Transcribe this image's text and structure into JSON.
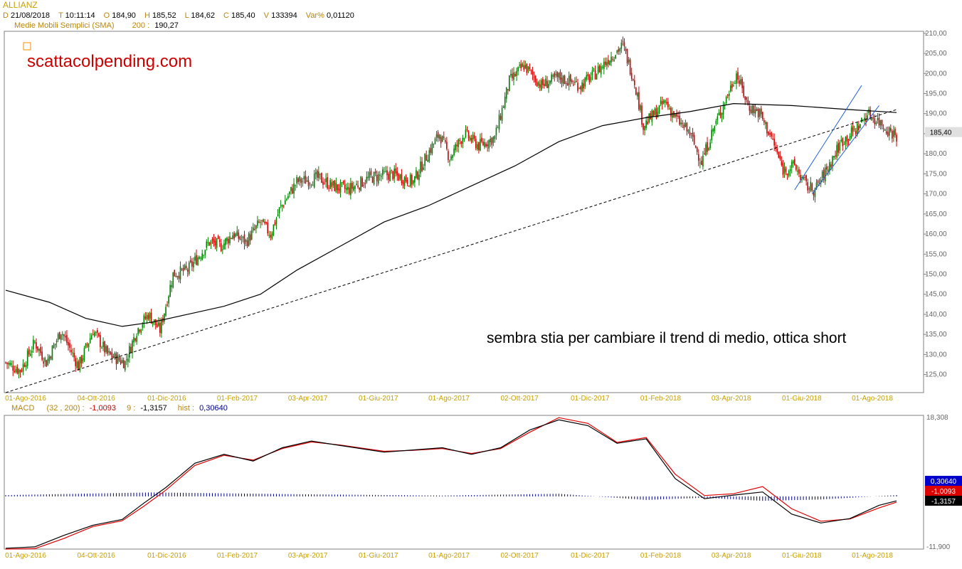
{
  "header": {
    "symbol": "ALLIANZ",
    "ohlc": [
      {
        "k": "D",
        "v": "21/08/2018"
      },
      {
        "k": "T",
        "v": "10:11:14"
      },
      {
        "k": "O",
        "v": "184,90"
      },
      {
        "k": "H",
        "v": "185,52"
      },
      {
        "k": "L",
        "v": "184,62"
      },
      {
        "k": "C",
        "v": "185,40"
      },
      {
        "k": "V",
        "v": "133394"
      },
      {
        "k": "Var%",
        "v": "0,01120"
      }
    ],
    "sma_label": "Medie Mobili Semplici (SMA)",
    "sma_period": "200 :",
    "sma_value": "190,27"
  },
  "watermark": "scattacolpending.com",
  "annotation": "sembra stia per cambiare il trend di medio, ottica short",
  "colors": {
    "axis_label": "#c8a000",
    "up_candle": "#008000",
    "down_candle": "#cc0000",
    "sma": "#000000",
    "channel": "#1f5fd6",
    "macd_line": "#000000",
    "signal_line": "#e00000",
    "histogram": "#00008b",
    "watermark": "#cc0000",
    "marker": "#ff8c00"
  },
  "macd_header": {
    "label": "MACD",
    "params": "(32 , 200) :",
    "macd": "-1,0093",
    "signal_period": "9 :",
    "signal": "-1,3157",
    "hist_label": "hist :",
    "hist": "0,30640"
  },
  "chart_data": [
    {
      "type": "candlestick",
      "x_ticks": [
        "01-Ago-2016",
        "04-Ott-2016",
        "01-Dic-2016",
        "01-Feb-2017",
        "03-Apr-2017",
        "01-Giu-2017",
        "01-Ago-2017",
        "02-Ott-2017",
        "01-Dic-2017",
        "01-Feb-2018",
        "03-Apr-2018",
        "01-Giu-2018",
        "01-Ago-2018"
      ],
      "y_ticks": [
        "210,00",
        "205,00",
        "200,00",
        "195,00",
        "190,00",
        "185,00",
        "180,00",
        "175,00",
        "170,00",
        "165,00",
        "160,00",
        "155,00",
        "150,00",
        "145,00",
        "140,00",
        "135,00",
        "130,00",
        "125,00"
      ],
      "ylim": [
        120.5,
        210.5
      ],
      "last_price_label": "185,40",
      "last_price": 185.4,
      "close_path": [
        [
          0,
          128
        ],
        [
          10,
          126
        ],
        [
          20,
          133
        ],
        [
          28,
          128
        ],
        [
          38,
          136
        ],
        [
          50,
          127
        ],
        [
          60,
          136
        ],
        [
          70,
          130
        ],
        [
          82,
          128
        ],
        [
          90,
          136
        ],
        [
          98,
          140
        ],
        [
          106,
          136
        ],
        [
          115,
          150
        ],
        [
          125,
          151
        ],
        [
          140,
          158
        ],
        [
          148,
          157
        ],
        [
          156,
          160
        ],
        [
          165,
          158
        ],
        [
          175,
          163
        ],
        [
          182,
          160
        ],
        [
          188,
          166
        ],
        [
          200,
          173
        ],
        [
          215,
          174
        ],
        [
          224,
          172
        ],
        [
          235,
          171
        ],
        [
          250,
          174
        ],
        [
          265,
          175
        ],
        [
          280,
          173
        ],
        [
          290,
          180
        ],
        [
          298,
          185
        ],
        [
          305,
          179
        ],
        [
          315,
          185
        ],
        [
          325,
          182
        ],
        [
          336,
          184
        ],
        [
          346,
          198
        ],
        [
          356,
          202
        ],
        [
          368,
          197
        ],
        [
          380,
          199
        ],
        [
          395,
          197
        ],
        [
          405,
          200
        ],
        [
          415,
          204
        ],
        [
          424,
          207
        ],
        [
          432,
          198
        ],
        [
          438,
          187
        ],
        [
          446,
          190
        ],
        [
          453,
          193
        ],
        [
          460,
          189
        ],
        [
          470,
          185
        ],
        [
          478,
          178
        ],
        [
          486,
          186
        ],
        [
          494,
          193
        ],
        [
          502,
          200
        ],
        [
          510,
          192
        ],
        [
          518,
          190
        ],
        [
          526,
          184
        ],
        [
          534,
          176
        ],
        [
          542,
          177
        ],
        [
          550,
          172
        ],
        [
          556,
          171
        ],
        [
          564,
          176
        ],
        [
          574,
          183
        ],
        [
          584,
          186
        ],
        [
          592,
          190
        ],
        [
          600,
          188
        ],
        [
          606,
          186
        ],
        [
          612,
          184.6
        ]
      ],
      "sma200_path": [
        [
          0,
          146
        ],
        [
          30,
          143
        ],
        [
          55,
          139
        ],
        [
          80,
          137
        ],
        [
          100,
          138
        ],
        [
          125,
          140
        ],
        [
          150,
          142
        ],
        [
          175,
          145
        ],
        [
          200,
          151
        ],
        [
          230,
          157
        ],
        [
          260,
          163
        ],
        [
          290,
          167
        ],
        [
          320,
          172
        ],
        [
          350,
          177
        ],
        [
          380,
          183
        ],
        [
          410,
          187
        ],
        [
          440,
          189
        ],
        [
          470,
          190.5
        ],
        [
          500,
          192.5
        ],
        [
          540,
          192
        ],
        [
          580,
          191
        ],
        [
          612,
          190.27
        ]
      ],
      "trendline": [
        [
          0,
          120.5
        ],
        [
          612,
          191
        ]
      ],
      "channel": [
        [
          [
            542,
            171
          ],
          [
            588,
            197
          ]
        ],
        [
          [
            554,
            170
          ],
          [
            600,
            192
          ]
        ]
      ],
      "x_max": 612
    },
    {
      "type": "line",
      "name": "MACD",
      "ylim": [
        -11.9,
        18.308
      ],
      "y_ticks": [
        "18,308",
        "-11,900"
      ],
      "value_labels": [
        "0,30640",
        "-1,0093",
        "-1,3157"
      ],
      "macd": [
        [
          0,
          -11.7
        ],
        [
          20,
          -11.4
        ],
        [
          40,
          -8.8
        ],
        [
          60,
          -6.5
        ],
        [
          80,
          -5.2
        ],
        [
          95,
          -1.5
        ],
        [
          110,
          2.0
        ],
        [
          130,
          7.5
        ],
        [
          150,
          9.5
        ],
        [
          170,
          8.0
        ],
        [
          190,
          11.0
        ],
        [
          210,
          12.5
        ],
        [
          230,
          11.5
        ],
        [
          260,
          10.0
        ],
        [
          280,
          10.5
        ],
        [
          300,
          11.0
        ],
        [
          320,
          9.5
        ],
        [
          340,
          11.0
        ],
        [
          360,
          15.0
        ],
        [
          380,
          17.3
        ],
        [
          400,
          16.0
        ],
        [
          420,
          12.0
        ],
        [
          440,
          13.0
        ],
        [
          460,
          4.0
        ],
        [
          480,
          -0.5
        ],
        [
          500,
          0.3
        ],
        [
          520,
          1.0
        ],
        [
          540,
          -4.0
        ],
        [
          560,
          -6.0
        ],
        [
          580,
          -5.0
        ],
        [
          600,
          -2.0
        ],
        [
          612,
          -1.0093
        ]
      ],
      "signal": [
        [
          0,
          -11.9
        ],
        [
          20,
          -11.8
        ],
        [
          40,
          -9.5
        ],
        [
          60,
          -6.8
        ],
        [
          80,
          -5.5
        ],
        [
          95,
          -2.2
        ],
        [
          110,
          1.4
        ],
        [
          130,
          7.0
        ],
        [
          150,
          9.3
        ],
        [
          170,
          8.2
        ],
        [
          190,
          10.8
        ],
        [
          210,
          12.3
        ],
        [
          230,
          11.6
        ],
        [
          260,
          10.2
        ],
        [
          280,
          10.4
        ],
        [
          300,
          10.8
        ],
        [
          320,
          9.7
        ],
        [
          340,
          10.8
        ],
        [
          360,
          14.5
        ],
        [
          380,
          17.8
        ],
        [
          400,
          16.5
        ],
        [
          420,
          12.2
        ],
        [
          440,
          13.3
        ],
        [
          460,
          5.0
        ],
        [
          480,
          0.2
        ],
        [
          500,
          0.6
        ],
        [
          520,
          2.2
        ],
        [
          540,
          -2.8
        ],
        [
          560,
          -5.6
        ],
        [
          580,
          -5.1
        ],
        [
          600,
          -2.6
        ],
        [
          612,
          -1.3157
        ]
      ],
      "hist": [
        [
          0,
          0.3
        ],
        [
          100,
          0.9
        ],
        [
          200,
          0.5
        ],
        [
          300,
          0.2
        ],
        [
          380,
          0.6
        ],
        [
          440,
          -0.8
        ],
        [
          480,
          -0.3
        ],
        [
          520,
          -1.0
        ],
        [
          560,
          -0.7
        ],
        [
          612,
          0.3064
        ]
      ]
    }
  ]
}
